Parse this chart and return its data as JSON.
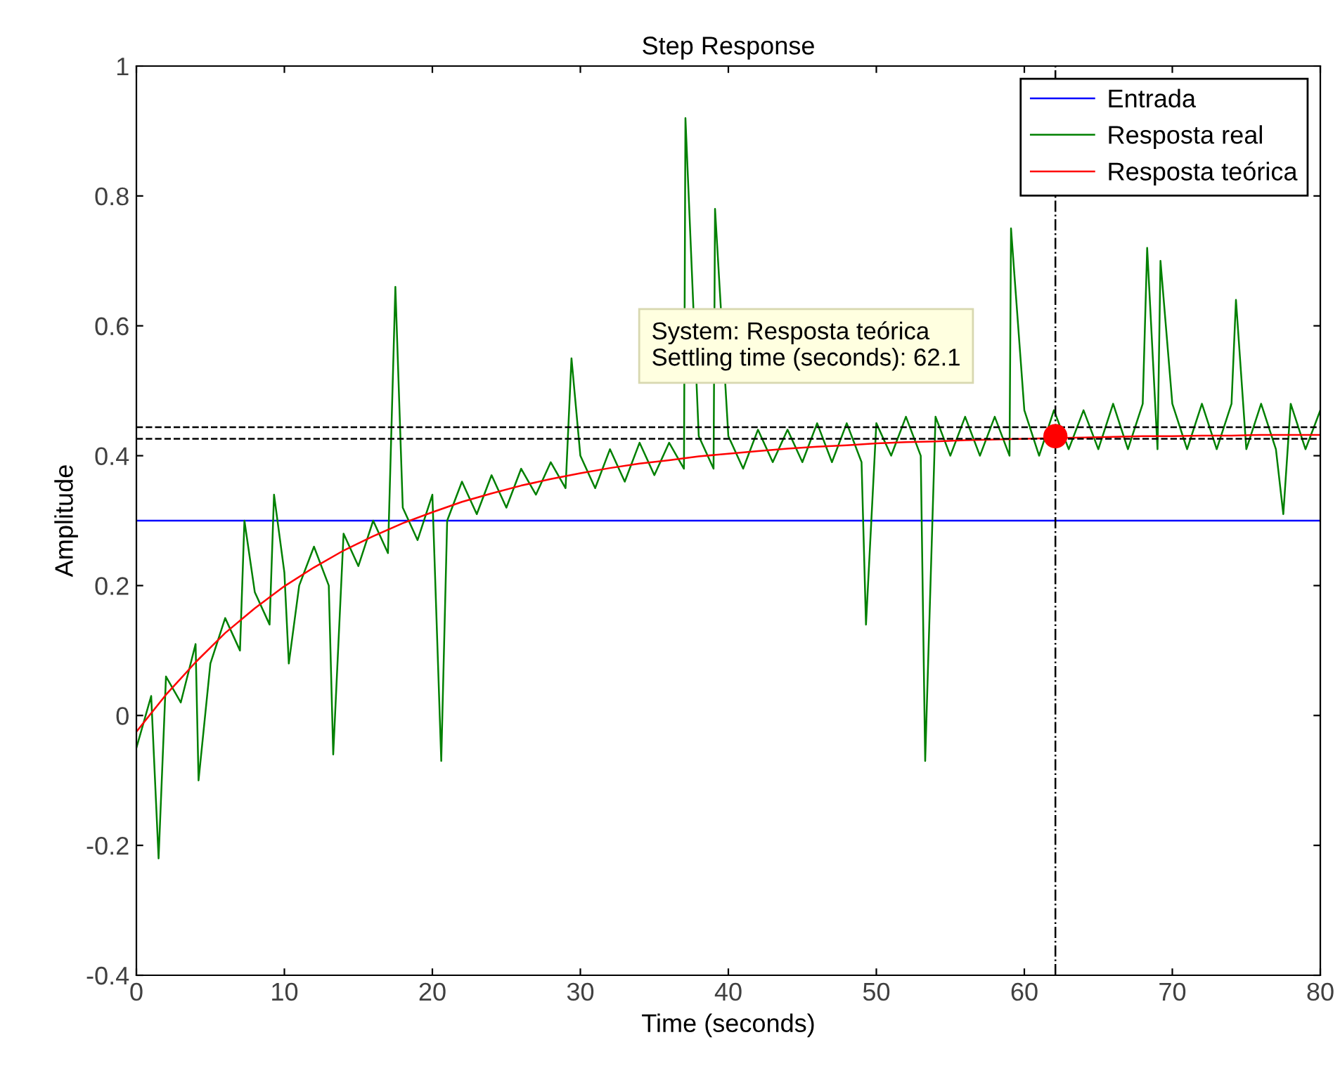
{
  "chart_data": {
    "type": "line",
    "title": "Step Response",
    "xlabel": "Time (seconds)",
    "ylabel": "Amplitude",
    "xlim": [
      0,
      80
    ],
    "xticks": [
      0,
      10,
      20,
      30,
      40,
      50,
      60,
      70,
      80
    ],
    "ylim": [
      -0.4,
      1
    ],
    "yticks": [
      -0.4,
      -0.2,
      0,
      0.2,
      0.4,
      0.6,
      0.8,
      1
    ],
    "grid": false,
    "legend": "top right",
    "marker": "none",
    "line_style": "solid",
    "series": [
      {
        "name": "Entrada",
        "color": "#0000ff",
        "x": [
          0,
          80
        ],
        "values": [
          0.3,
          0.3
        ]
      },
      {
        "name": "Resposta real",
        "color": "#008000",
        "x": [
          0,
          1,
          1.5,
          2,
          3,
          4,
          4.2,
          5,
          6,
          7,
          7.3,
          8,
          9,
          9.3,
          10,
          10.3,
          11,
          12,
          13,
          13.3,
          14,
          15,
          16,
          17,
          17.5,
          18,
          19,
          20,
          20.6,
          21,
          22,
          23,
          24,
          25,
          26,
          27,
          28,
          29,
          29.4,
          30,
          31,
          32,
          33,
          34,
          35,
          36,
          37,
          37.1,
          38,
          39,
          39.1,
          40,
          41,
          42,
          43,
          44,
          45,
          46,
          47,
          48,
          49,
          49.3,
          50,
          51,
          52,
          53,
          53.3,
          54,
          55,
          56,
          57,
          58,
          59,
          59.1,
          60,
          61,
          62,
          63,
          64,
          65,
          66,
          67,
          68,
          68.3,
          69,
          69.2,
          70,
          71,
          72,
          73,
          74,
          74.3,
          75,
          76,
          77,
          77.5,
          78,
          79,
          80
        ],
        "values": [
          -0.05,
          0.03,
          -0.22,
          0.06,
          0.02,
          0.11,
          -0.1,
          0.08,
          0.15,
          0.1,
          0.3,
          0.19,
          0.14,
          0.34,
          0.22,
          0.08,
          0.2,
          0.26,
          0.2,
          -0.06,
          0.28,
          0.23,
          0.3,
          0.25,
          0.66,
          0.32,
          0.27,
          0.34,
          -0.07,
          0.3,
          0.36,
          0.31,
          0.37,
          0.32,
          0.38,
          0.34,
          0.39,
          0.35,
          0.55,
          0.4,
          0.35,
          0.41,
          0.36,
          0.42,
          0.37,
          0.42,
          0.38,
          0.92,
          0.43,
          0.38,
          0.78,
          0.43,
          0.38,
          0.44,
          0.39,
          0.44,
          0.39,
          0.45,
          0.39,
          0.45,
          0.39,
          0.14,
          0.45,
          0.4,
          0.46,
          0.4,
          -0.07,
          0.46,
          0.4,
          0.46,
          0.4,
          0.46,
          0.4,
          0.75,
          0.47,
          0.4,
          0.47,
          0.41,
          0.47,
          0.41,
          0.48,
          0.41,
          0.48,
          0.72,
          0.41,
          0.7,
          0.48,
          0.41,
          0.48,
          0.41,
          0.48,
          0.64,
          0.41,
          0.48,
          0.41,
          0.31,
          0.48,
          0.41,
          0.47
        ]
      },
      {
        "name": "Resposta teórica",
        "color": "#ff0000",
        "x": [
          0,
          2,
          4,
          6,
          8,
          10,
          12,
          14,
          16,
          18,
          20,
          22,
          24,
          26,
          28,
          30,
          32,
          34,
          36,
          38,
          40,
          42,
          44,
          46,
          48,
          50,
          52,
          54,
          56,
          58,
          60,
          62,
          64,
          66,
          68,
          70,
          72,
          74,
          76,
          78,
          80
        ],
        "values": [
          -0.025,
          0.032,
          0.082,
          0.127,
          0.165,
          0.199,
          0.228,
          0.254,
          0.276,
          0.296,
          0.313,
          0.329,
          0.342,
          0.354,
          0.364,
          0.373,
          0.381,
          0.388,
          0.393,
          0.399,
          0.403,
          0.407,
          0.411,
          0.414,
          0.416,
          0.419,
          0.421,
          0.422,
          0.424,
          0.425,
          0.426,
          0.427,
          0.428,
          0.429,
          0.43,
          0.43,
          0.431,
          0.431,
          0.432,
          0.432,
          0.432
        ]
      },
      {
        "type": "scatter",
        "marker": "circle",
        "color": "#ff0000",
        "x": [
          62.1
        ],
        "values": [
          0.43
        ]
      }
    ],
    "ref_lines": [
      {
        "axis": "y",
        "value": 0.444,
        "color": "#000000",
        "line_style": "dashed"
      },
      {
        "axis": "y",
        "value": 0.426,
        "color": "#000000",
        "line_style": "dashed"
      },
      {
        "axis": "x",
        "value": 62.1,
        "color": "#000000",
        "line_style": "dashdot"
      }
    ],
    "annotations": [
      "System: Resposta teórica\nSettling time (seconds): 62.1"
    ]
  }
}
